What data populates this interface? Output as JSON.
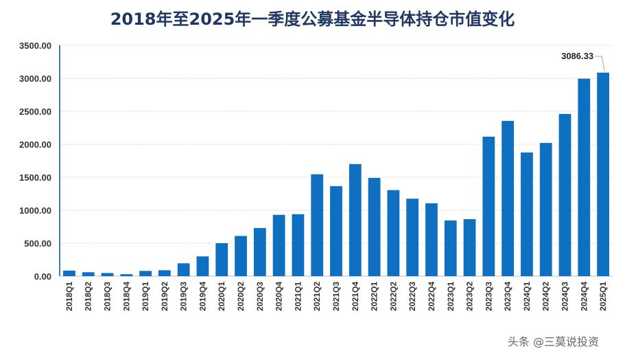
{
  "chart_data": {
    "type": "bar",
    "title": "2018年至2025年一季度公募基金半导体持仓市值变化",
    "xlabel": "",
    "ylabel": "",
    "ylim": [
      0,
      3500
    ],
    "yticks": [
      "0.00",
      "500.00",
      "1000.00",
      "1500.00",
      "2000.00",
      "2500.00",
      "3000.00",
      "3500.00"
    ],
    "grid": true,
    "bar_color": "#0f6fc0",
    "categories": [
      "2018Q1",
      "2018Q2",
      "2018Q3",
      "2018Q4",
      "2019Q1",
      "2019Q2",
      "2019Q3",
      "2019Q4",
      "2020Q1",
      "2020Q2",
      "2020Q3",
      "2020Q4",
      "2021Q1",
      "2021Q2",
      "2021Q3",
      "2021Q4",
      "2022Q1",
      "2022Q2",
      "2022Q3",
      "2022Q4",
      "2023Q1",
      "2023Q2",
      "2023Q3",
      "2023Q4",
      "2024Q1",
      "2024Q2",
      "2024Q3",
      "2024Q4",
      "2025Q1"
    ],
    "values": [
      85,
      60,
      48,
      30,
      80,
      90,
      195,
      300,
      500,
      610,
      730,
      930,
      940,
      1545,
      1365,
      1700,
      1490,
      1305,
      1175,
      1105,
      845,
      865,
      2115,
      2355,
      1875,
      2020,
      2460,
      2995,
      3086.33
    ],
    "annotations": [
      {
        "category": "2025Q1",
        "text": "3086.33"
      }
    ]
  },
  "watermark": "头条 @三莫说投资"
}
